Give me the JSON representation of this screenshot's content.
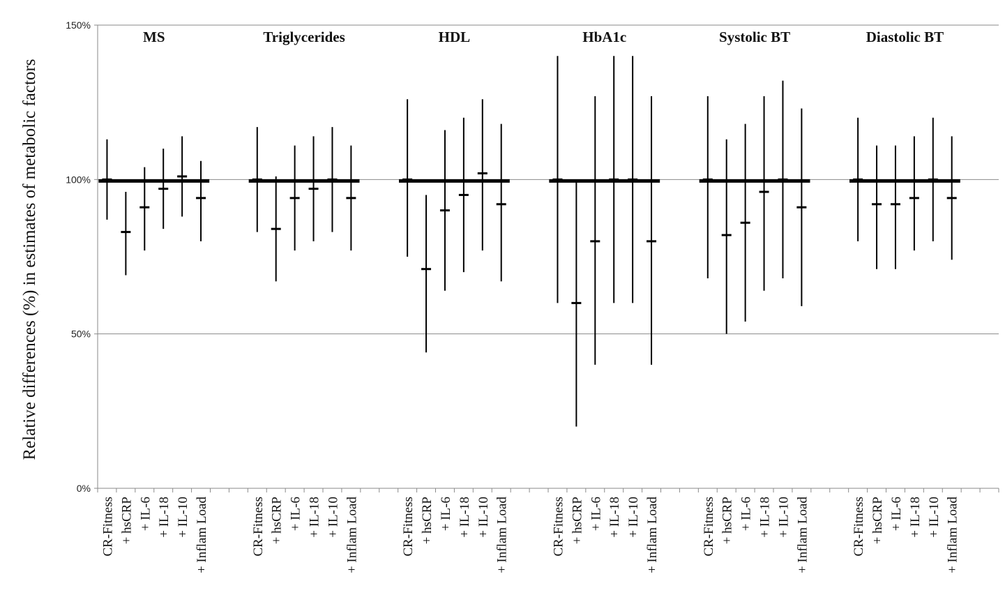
{
  "chart_data": {
    "type": "errorbar",
    "ylabel": "Relative differences (%) in estimates of metabolic factors",
    "ylim": [
      0,
      150
    ],
    "yticks": [
      0,
      50,
      100,
      150
    ],
    "ytick_labels": [
      "0%",
      "50%",
      "100%",
      "150%"
    ],
    "gridlines_y": [
      50,
      100,
      150
    ],
    "reference_value": 100,
    "categories": [
      "CR-Fitness",
      "+ hsCRP",
      "+ IL-6",
      "+ IL-18",
      "+ IL-10",
      "+ Inflam Load"
    ],
    "panels": [
      {
        "title": "MS",
        "values": [
          100,
          83,
          91,
          97,
          101,
          94
        ],
        "lower": [
          87,
          69,
          77,
          84,
          88,
          80
        ],
        "upper": [
          113,
          96,
          104,
          110,
          114,
          106
        ]
      },
      {
        "title": "Triglycerides",
        "values": [
          100,
          84,
          94,
          97,
          100,
          94
        ],
        "lower": [
          83,
          67,
          77,
          80,
          83,
          77
        ],
        "upper": [
          117,
          101,
          111,
          114,
          117,
          111
        ]
      },
      {
        "title": "HDL",
        "values": [
          100,
          71,
          90,
          95,
          102,
          92
        ],
        "lower": [
          75,
          44,
          64,
          70,
          77,
          67
        ],
        "upper": [
          126,
          95,
          116,
          120,
          126,
          118
        ]
      },
      {
        "title": "HbA1c",
        "values": [
          100,
          60,
          80,
          100,
          100,
          80
        ],
        "lower": [
          60,
          20,
          40,
          60,
          60,
          40
        ],
        "upper": [
          140,
          100,
          127,
          140,
          140,
          127
        ]
      },
      {
        "title": "Systolic BT",
        "values": [
          100,
          82,
          86,
          96,
          100,
          91
        ],
        "lower": [
          68,
          50,
          54,
          64,
          68,
          59
        ],
        "upper": [
          127,
          113,
          118,
          127,
          132,
          123
        ]
      },
      {
        "title": "Diastolic BT",
        "values": [
          100,
          92,
          92,
          94,
          100,
          94
        ],
        "lower": [
          80,
          71,
          71,
          77,
          80,
          74
        ],
        "upper": [
          120,
          111,
          111,
          114,
          120,
          114
        ]
      }
    ]
  }
}
